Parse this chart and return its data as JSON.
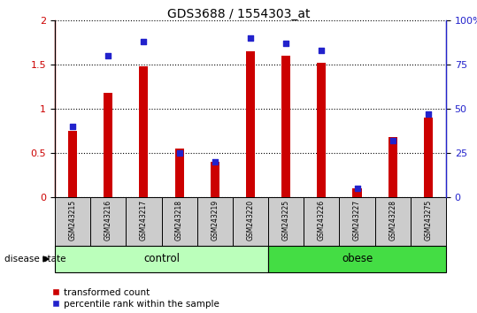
{
  "title": "GDS3688 / 1554303_at",
  "samples": [
    "GSM243215",
    "GSM243216",
    "GSM243217",
    "GSM243218",
    "GSM243219",
    "GSM243220",
    "GSM243225",
    "GSM243226",
    "GSM243227",
    "GSM243228",
    "GSM243275"
  ],
  "transformed_count": [
    0.75,
    1.18,
    1.48,
    0.55,
    0.4,
    1.65,
    1.6,
    1.52,
    0.1,
    0.68,
    0.9
  ],
  "percentile_rank": [
    40,
    80,
    88,
    25,
    20,
    90,
    87,
    83,
    5,
    32,
    47
  ],
  "control_indices": [
    0,
    1,
    2,
    3,
    4,
    5
  ],
  "obese_indices": [
    6,
    7,
    8,
    9,
    10
  ],
  "bar_color": "#CC0000",
  "dot_color": "#2222CC",
  "control_color": "#BBFFBB",
  "obese_color": "#44DD44",
  "label_bg_color": "#CCCCCC",
  "ylim_left": [
    0,
    2
  ],
  "ylim_right": [
    0,
    100
  ],
  "yticks_left": [
    0,
    0.5,
    1.0,
    1.5,
    2.0
  ],
  "yticks_right": [
    0,
    25,
    50,
    75,
    100
  ],
  "legend_red": "transformed count",
  "legend_blue": "percentile rank within the sample",
  "disease_state_label": "disease state",
  "control_label": "control",
  "obese_label": "obese",
  "bar_width": 0.25
}
